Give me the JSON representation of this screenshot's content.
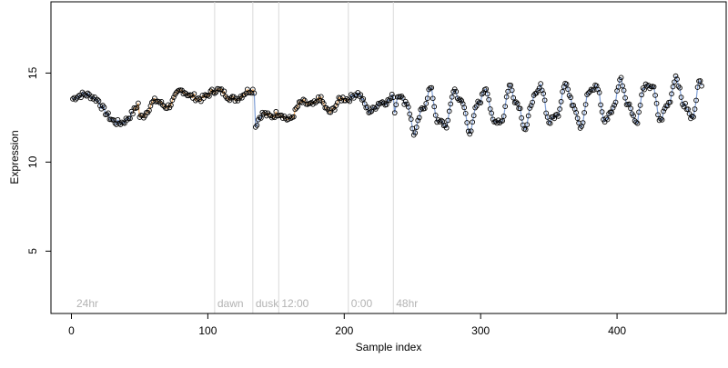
{
  "chart_data": {
    "type": "scatter",
    "title": "",
    "xlabel": "Sample index",
    "ylabel": "Expression",
    "xlim": [
      -15,
      480
    ],
    "ylim": [
      1.5,
      19.0
    ],
    "x_ticks": [
      0,
      100,
      200,
      300,
      400
    ],
    "y_ticks": [
      5,
      10,
      15
    ],
    "grid": false,
    "legend": "none",
    "phase_lines": [
      {
        "x": 105,
        "label": "dawn"
      },
      {
        "x": 133,
        "label": "dusk"
      },
      {
        "x": 152,
        "label": "12:00"
      },
      {
        "x": 203,
        "label": "0:00"
      },
      {
        "x": 236,
        "label": "48hr"
      }
    ],
    "corner_label": {
      "x": 3,
      "label": "24hr"
    },
    "series": [
      {
        "color_points": "#000000",
        "color_line_blue": "#6a8fd0",
        "color_line_orange": "#f0a04b",
        "segments": [
          {
            "start": 1,
            "end": 135,
            "values_desc": "slowly varying ~13.5 with dip to ~12 near 40 and rise to ~14 near 90-130"
          },
          {
            "start": 135,
            "end": 237,
            "values_desc": "step drop to ~12 at 135 then recovery to ~13.5"
          },
          {
            "start": 237,
            "end": 462,
            "values_desc": "oscillating 11.5-14.3"
          }
        ]
      }
    ]
  }
}
